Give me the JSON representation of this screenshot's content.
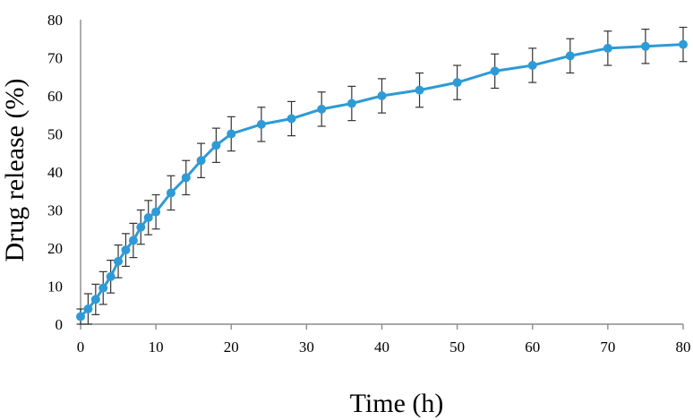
{
  "chart_data": {
    "type": "line",
    "title": "",
    "xlabel": "Time (h)",
    "ylabel": "Drug release (%)",
    "xlim": [
      0,
      80
    ],
    "ylim": [
      0,
      80
    ],
    "x_ticks": [
      0,
      10,
      20,
      30,
      40,
      50,
      60,
      70,
      80
    ],
    "y_ticks": [
      0,
      10,
      20,
      30,
      40,
      50,
      60,
      70,
      80
    ],
    "grid": false,
    "series": [
      {
        "name": "Drug release",
        "color": "#2e9ad6",
        "x": [
          0,
          1,
          2,
          3,
          4,
          5,
          6,
          7,
          8,
          9,
          10,
          12,
          14,
          16,
          18,
          20,
          24,
          28,
          32,
          36,
          40,
          45,
          50,
          55,
          60,
          65,
          70,
          75,
          80
        ],
        "y": [
          2,
          4,
          6.5,
          9.5,
          12.5,
          16.5,
          19.5,
          22,
          25.5,
          28,
          29.5,
          34.5,
          38.5,
          43,
          47,
          50,
          52.5,
          54,
          56.5,
          58,
          60,
          61.5,
          63.5,
          66.5,
          68,
          70.5,
          72.5,
          73,
          73.5
        ],
        "error": [
          2,
          4,
          4,
          4.3,
          4.3,
          4.3,
          4.3,
          4.5,
          4.5,
          4.5,
          4.5,
          4.5,
          4.5,
          4.5,
          4.5,
          4.5,
          4.5,
          4.5,
          4.5,
          4.5,
          4.5,
          4.5,
          4.5,
          4.5,
          4.5,
          4.5,
          4.5,
          4.5,
          4.5
        ]
      }
    ]
  }
}
